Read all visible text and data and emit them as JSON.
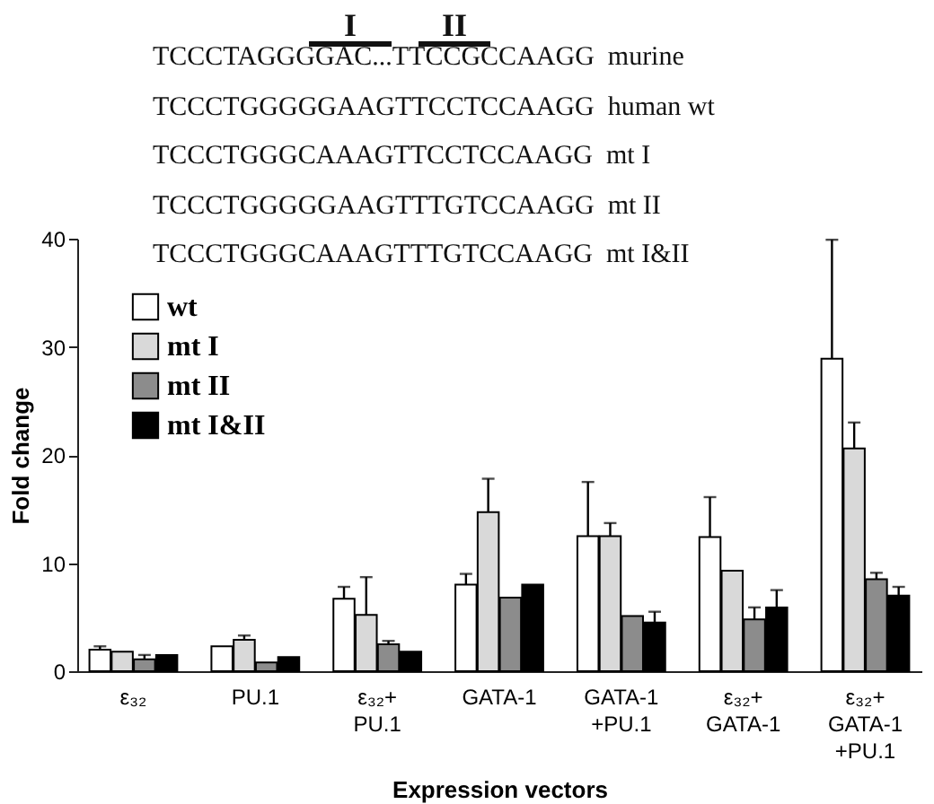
{
  "chart_data": {
    "type": "bar",
    "annotations": [
      "I",
      "II",
      "TCCCTAGGGGAC...TTCCGCCAAGG  murine",
      "TCCCTGGGGGAAGTTCCTCCAAGG  human wt",
      "TCCCTGGGCAAAGTTCCTCCAAGG  mt I",
      "TCCCTGGGGGAAGTTTGTCCAAGG  mt II",
      "TCCCTGGGCAAAGTTTGTCCAAGG  mt I&II"
    ],
    "xlabel": "Expression vectors",
    "ylabel": "Fold change",
    "categories": [
      "ε₃₂",
      "PU.1",
      "ε₃₂+\nPU.1",
      "GATA-1",
      "GATA-1\n+PU.1",
      "ε₃₂+\nGATA-1",
      "ε₃₂+\nGATA-1\n+PU.1"
    ],
    "series": [
      {
        "name": "wt",
        "color": "#ffffff",
        "values": [
          2.0,
          2.3,
          6.7,
          8.0,
          12.5,
          12.4,
          28.9
        ],
        "errors": [
          [
            2.0,
            2.3
          ],
          null,
          [
            6.7,
            7.8
          ],
          [
            8.0,
            9.0
          ],
          [
            12.5,
            17.5
          ],
          [
            12.4,
            16.1
          ],
          [
            28.9,
            39.9
          ]
        ]
      },
      {
        "name": "mt I",
        "color": "#d9d9d9",
        "values": [
          1.8,
          2.9,
          5.2,
          14.7,
          12.5,
          9.3,
          20.6
        ],
        "errors": [
          null,
          [
            2.9,
            3.3
          ],
          [
            5.2,
            8.7
          ],
          [
            14.7,
            17.8
          ],
          [
            12.5,
            13.7
          ],
          null,
          [
            20.6,
            23.0
          ]
        ]
      },
      {
        "name": "mt II",
        "color": "#8c8c8c",
        "values": [
          1.1,
          0.8,
          2.5,
          6.8,
          5.1,
          4.8,
          8.5
        ],
        "errors": [
          [
            1.1,
            1.5
          ],
          null,
          [
            2.5,
            2.8
          ],
          null,
          null,
          [
            4.8,
            5.9
          ],
          [
            8.5,
            9.1
          ]
        ]
      },
      {
        "name": "mt I&II",
        "color": "#000000",
        "values": [
          1.5,
          1.3,
          1.8,
          8.0,
          4.5,
          5.9,
          7.0
        ],
        "errors": [
          null,
          null,
          null,
          null,
          [
            4.5,
            5.5
          ],
          [
            5.9,
            7.5
          ],
          [
            7.0,
            7.8
          ]
        ]
      }
    ],
    "ylim": [
      0,
      40
    ],
    "yticks": [
      0,
      10,
      20,
      30,
      40
    ],
    "legend": "top left"
  }
}
